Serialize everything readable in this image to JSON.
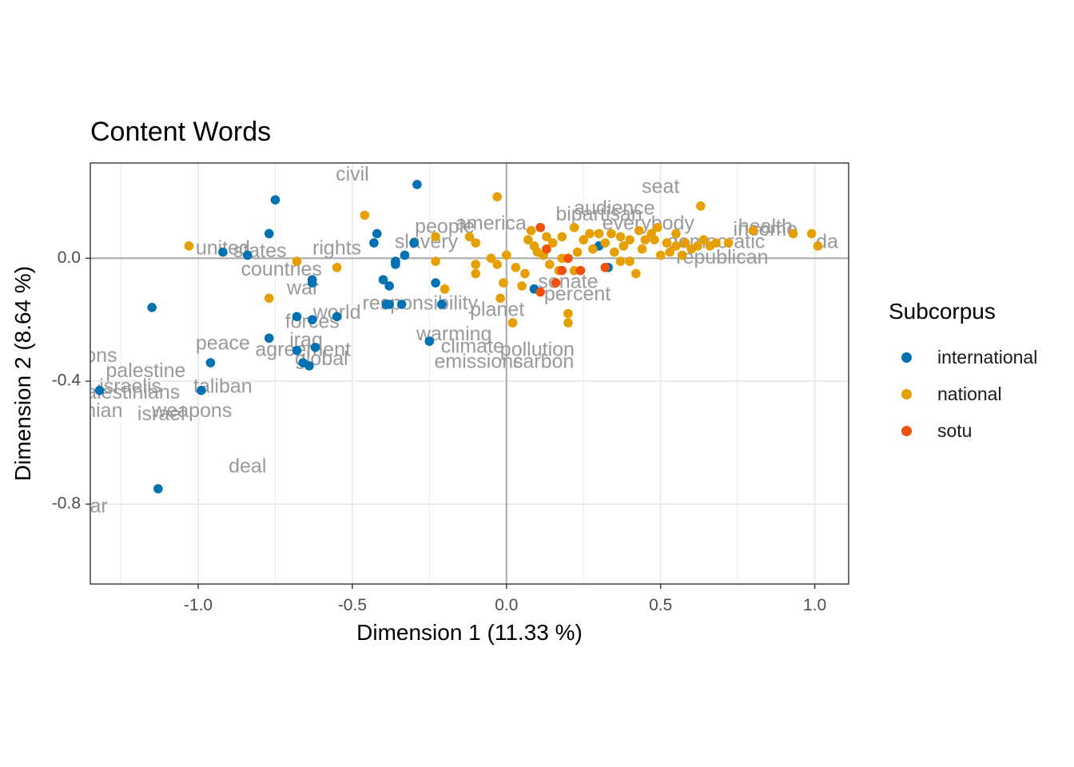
{
  "chart_data": {
    "type": "scatter",
    "title": "Content Words",
    "xlabel": "Dimension 1 (11.33 %)",
    "ylabel": "Dimension 2 (8.64 %)",
    "xlim": [
      -1.35,
      1.11
    ],
    "ylim": [
      -1.06,
      0.31
    ],
    "x_ticks": [
      -1.0,
      -0.5,
      0.0,
      0.5,
      1.0
    ],
    "x_tick_labels": [
      "-1.0",
      "-0.5",
      "0.0",
      "0.5",
      "1.0"
    ],
    "y_ticks": [
      -0.8,
      -0.4,
      0.0
    ],
    "y_tick_labels": [
      "-0.8",
      "-0.4",
      "0.0"
    ],
    "grid": true,
    "reference_lines": {
      "x": 0,
      "y": 0
    },
    "legend": {
      "title": "Subcorpus",
      "placement": "right",
      "entries": [
        "international",
        "national",
        "sotu"
      ]
    },
    "colors": {
      "international": "#0072B2",
      "national": "#E69F00",
      "sotu": "#F0500A",
      "word_label": "#999999",
      "panel_border": "#333333",
      "grid_major": "#EBEBEB",
      "zero_line": "#AAAAAA"
    },
    "series": [
      {
        "name": "international",
        "points": [
          [
            -1.32,
            -0.43
          ],
          [
            -1.15,
            -0.16
          ],
          [
            -1.13,
            -0.75
          ],
          [
            -0.99,
            -0.43
          ],
          [
            -0.96,
            -0.34
          ],
          [
            -0.92,
            0.02
          ],
          [
            -0.84,
            0.01
          ],
          [
            -0.77,
            0.08
          ],
          [
            -0.75,
            0.19
          ],
          [
            -0.77,
            -0.26
          ],
          [
            -0.68,
            -0.19
          ],
          [
            -0.68,
            -0.3
          ],
          [
            -0.66,
            -0.34
          ],
          [
            -0.64,
            -0.35
          ],
          [
            -0.63,
            -0.2
          ],
          [
            -0.63,
            -0.08
          ],
          [
            -0.63,
            -0.07
          ],
          [
            -0.62,
            -0.29
          ],
          [
            -0.55,
            -0.19
          ],
          [
            -0.43,
            0.05
          ],
          [
            -0.42,
            0.08
          ],
          [
            -0.4,
            -0.07
          ],
          [
            -0.39,
            -0.15
          ],
          [
            -0.38,
            -0.09
          ],
          [
            -0.38,
            -0.15
          ],
          [
            -0.36,
            -0.01
          ],
          [
            -0.36,
            -0.02
          ],
          [
            -0.33,
            0.01
          ],
          [
            -0.34,
            -0.15
          ],
          [
            -0.3,
            0.05
          ],
          [
            -0.29,
            0.24
          ],
          [
            -0.25,
            -0.27
          ],
          [
            -0.23,
            -0.08
          ],
          [
            -0.21,
            -0.15
          ],
          [
            0.09,
            -0.1
          ],
          [
            0.3,
            0.04
          ],
          [
            0.33,
            -0.03
          ]
        ]
      },
      {
        "name": "national",
        "points": [
          [
            -1.03,
            0.04
          ],
          [
            -0.77,
            -0.13
          ],
          [
            -0.68,
            -0.01
          ],
          [
            -0.55,
            -0.03
          ],
          [
            -0.46,
            0.14
          ],
          [
            -0.23,
            0.07
          ],
          [
            -0.23,
            -0.01
          ],
          [
            -0.2,
            -0.1
          ],
          [
            -0.12,
            0.07
          ],
          [
            -0.1,
            0.05
          ],
          [
            -0.1,
            -0.02
          ],
          [
            -0.1,
            -0.05
          ],
          [
            -0.05,
            0.0
          ],
          [
            -0.03,
            0.2
          ],
          [
            -0.03,
            -0.02
          ],
          [
            -0.02,
            -0.13
          ],
          [
            -0.01,
            -0.08
          ],
          [
            0.0,
            0.01
          ],
          [
            0.02,
            -0.21
          ],
          [
            0.03,
            -0.03
          ],
          [
            0.05,
            -0.09
          ],
          [
            0.06,
            -0.05
          ],
          [
            0.07,
            0.06
          ],
          [
            0.08,
            0.09
          ],
          [
            0.09,
            0.04
          ],
          [
            0.1,
            0.02
          ],
          [
            0.12,
            0.01
          ],
          [
            0.13,
            0.07
          ],
          [
            0.14,
            -0.02
          ],
          [
            0.15,
            0.05
          ],
          [
            0.17,
            -0.04
          ],
          [
            0.18,
            0.07
          ],
          [
            0.18,
            0.0
          ],
          [
            0.2,
            -0.18
          ],
          [
            0.2,
            -0.21
          ],
          [
            0.22,
            0.1
          ],
          [
            0.22,
            -0.04
          ],
          [
            0.23,
            0.02
          ],
          [
            0.25,
            0.06
          ],
          [
            0.27,
            0.08
          ],
          [
            0.28,
            0.03
          ],
          [
            0.3,
            0.08
          ],
          [
            0.32,
            0.05
          ],
          [
            0.34,
            0.08
          ],
          [
            0.35,
            0.02
          ],
          [
            0.37,
            0.07
          ],
          [
            0.37,
            -0.01
          ],
          [
            0.38,
            0.04
          ],
          [
            0.4,
            0.06
          ],
          [
            0.4,
            -0.01
          ],
          [
            0.42,
            -0.05
          ],
          [
            0.43,
            0.09
          ],
          [
            0.44,
            0.03
          ],
          [
            0.45,
            0.06
          ],
          [
            0.47,
            0.08
          ],
          [
            0.48,
            0.06
          ],
          [
            0.49,
            0.1
          ],
          [
            0.5,
            0.01
          ],
          [
            0.52,
            0.05
          ],
          [
            0.53,
            0.02
          ],
          [
            0.55,
            0.08
          ],
          [
            0.55,
            0.04
          ],
          [
            0.57,
            0.01
          ],
          [
            0.58,
            0.05
          ],
          [
            0.6,
            0.03
          ],
          [
            0.62,
            0.04
          ],
          [
            0.63,
            0.17
          ],
          [
            0.64,
            0.06
          ],
          [
            0.66,
            0.04
          ],
          [
            0.68,
            0.05
          ],
          [
            0.72,
            0.05
          ],
          [
            0.8,
            0.09
          ],
          [
            0.93,
            0.08
          ],
          [
            0.99,
            0.08
          ],
          [
            1.01,
            0.04
          ]
        ]
      },
      {
        "name": "sotu",
        "points": [
          [
            0.11,
            0.1
          ],
          [
            0.11,
            -0.11
          ],
          [
            0.13,
            0.03
          ],
          [
            0.16,
            -0.08
          ],
          [
            0.18,
            -0.04
          ],
          [
            0.2,
            0.0
          ],
          [
            0.24,
            -0.04
          ],
          [
            0.32,
            -0.03
          ]
        ]
      }
    ],
    "word_labels": [
      {
        "text": "civil",
        "x": -0.5,
        "y": 0.27
      },
      {
        "text": "seat",
        "x": 0.5,
        "y": 0.23
      },
      {
        "text": "audience",
        "x": 0.35,
        "y": 0.16
      },
      {
        "text": "bipartisan",
        "x": 0.3,
        "y": 0.14
      },
      {
        "text": "everybody",
        "x": 0.46,
        "y": 0.11
      },
      {
        "text": "america",
        "x": -0.05,
        "y": 0.11
      },
      {
        "text": "people",
        "x": -0.2,
        "y": 0.1
      },
      {
        "text": "health",
        "x": 0.84,
        "y": 0.1
      },
      {
        "text": "income",
        "x": 0.84,
        "y": 0.09
      },
      {
        "text": "da",
        "x": 1.04,
        "y": 0.05
      },
      {
        "text": "democratic",
        "x": 0.68,
        "y": 0.05
      },
      {
        "text": "slavery",
        "x": -0.26,
        "y": 0.05
      },
      {
        "text": "rights",
        "x": -0.55,
        "y": 0.03
      },
      {
        "text": "united",
        "x": -0.92,
        "y": 0.03
      },
      {
        "text": "states",
        "x": -0.8,
        "y": 0.02
      },
      {
        "text": "republican",
        "x": 0.7,
        "y": 0.0
      },
      {
        "text": "countries",
        "x": -0.73,
        "y": -0.04
      },
      {
        "text": "senate",
        "x": 0.2,
        "y": -0.08
      },
      {
        "text": "war",
        "x": -0.66,
        "y": -0.1
      },
      {
        "text": "percent",
        "x": 0.23,
        "y": -0.12
      },
      {
        "text": "responsibility",
        "x": -0.28,
        "y": -0.15
      },
      {
        "text": "planet",
        "x": -0.03,
        "y": -0.17
      },
      {
        "text": "world",
        "x": -0.55,
        "y": -0.18
      },
      {
        "text": "forces",
        "x": -0.63,
        "y": -0.21
      },
      {
        "text": "warming",
        "x": -0.17,
        "y": -0.25
      },
      {
        "text": "peace",
        "x": -0.92,
        "y": -0.28
      },
      {
        "text": "iraq",
        "x": -0.65,
        "y": -0.27
      },
      {
        "text": "climate",
        "x": -0.11,
        "y": -0.29
      },
      {
        "text": "agreement",
        "x": -0.66,
        "y": -0.3
      },
      {
        "text": "pollution",
        "x": 0.1,
        "y": -0.3
      },
      {
        "text": "sanctions",
        "x": -1.4,
        "y": -0.32
      },
      {
        "text": "global",
        "x": -0.6,
        "y": -0.33
      },
      {
        "text": "emissions",
        "x": -0.09,
        "y": -0.34
      },
      {
        "text": "carbon",
        "x": 0.12,
        "y": -0.34
      },
      {
        "text": "palestine",
        "x": -1.17,
        "y": -0.37
      },
      {
        "text": "taliban",
        "x": -0.92,
        "y": -0.42
      },
      {
        "text": "israelis",
        "x": -1.22,
        "y": -0.42
      },
      {
        "text": "palestinians",
        "x": -1.23,
        "y": -0.44
      },
      {
        "text": "weapons",
        "x": -1.02,
        "y": -0.5
      },
      {
        "text": "israel",
        "x": -1.12,
        "y": -0.51
      },
      {
        "text": "palestinian",
        "x": -1.4,
        "y": -0.5
      },
      {
        "text": "deal",
        "x": -0.84,
        "y": -0.68
      },
      {
        "text": "nuclear",
        "x": -1.4,
        "y": -0.81
      }
    ]
  }
}
